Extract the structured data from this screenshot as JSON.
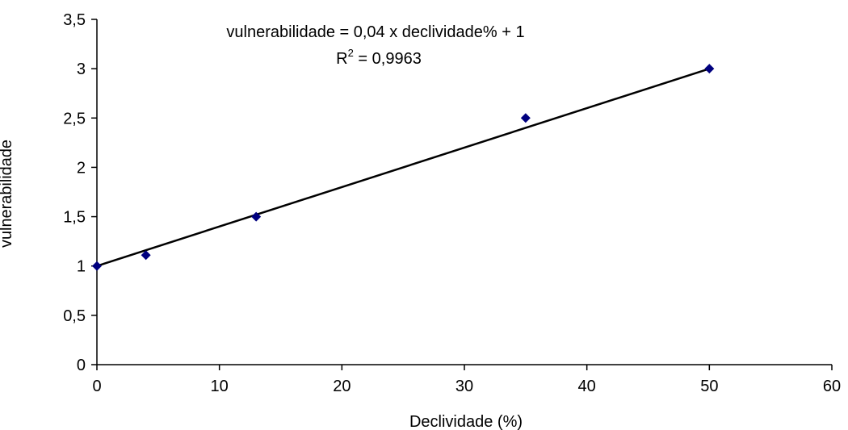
{
  "chart_data": {
    "type": "scatter",
    "title": "",
    "xlabel": "Declividade (%)",
    "ylabel": "vulnerabilidade",
    "xlim": [
      0,
      60
    ],
    "ylim": [
      0,
      3.5
    ],
    "x_ticks": [
      0,
      10,
      20,
      30,
      40,
      50,
      60
    ],
    "y_ticks": [
      0,
      0.5,
      1,
      1.5,
      2,
      2.5,
      3,
      3.5
    ],
    "x_tick_labels": [
      "0",
      "10",
      "20",
      "30",
      "40",
      "50",
      "60"
    ],
    "y_tick_labels": [
      "0",
      "0,5",
      "1",
      "1,5",
      "2",
      "2,5",
      "3",
      "3,5"
    ],
    "grid": false,
    "legend": "none",
    "marker_color": "#00007f",
    "line_color": "#000000",
    "series": [
      {
        "points": [
          {
            "x": 0,
            "y": 1.0
          },
          {
            "x": 4,
            "y": 1.11
          },
          {
            "x": 13,
            "y": 1.5
          },
          {
            "x": 35,
            "y": 2.5
          },
          {
            "x": 50,
            "y": 3.0
          }
        ]
      }
    ],
    "trendline": {
      "slope": 0.04,
      "intercept": 1.0,
      "x_range": [
        0,
        50
      ]
    },
    "annotations": {
      "equation": "vulnerabilidade = 0,04 x declividade% + 1",
      "r2_prefix": "R",
      "r2_superscript": "2",
      "r2_value": " = 0,9963"
    }
  }
}
